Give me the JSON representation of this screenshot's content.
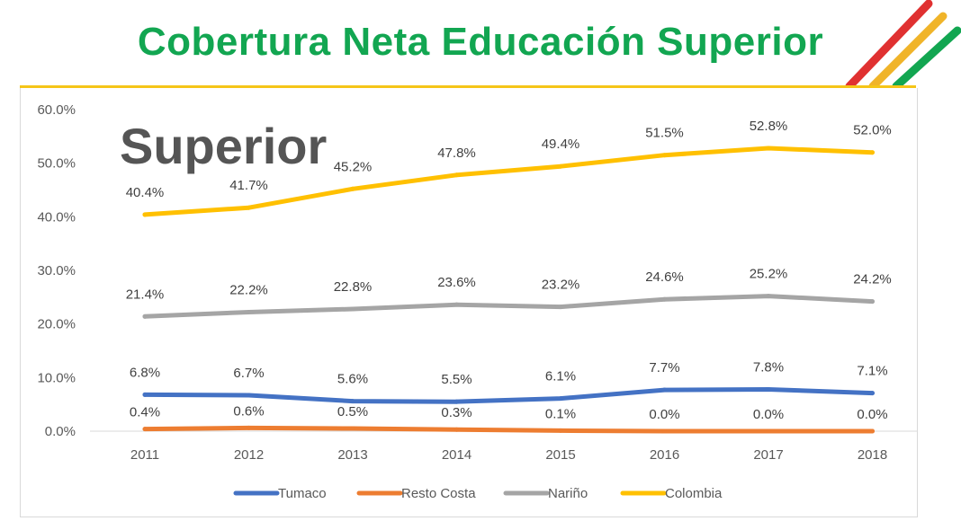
{
  "title": "Cobertura Neta Educación Superior",
  "overlay_text": "Superior",
  "colors": {
    "title": "#12a651",
    "Tumaco": "#4472c4",
    "Resto Costa": "#ed7d31",
    "Nariño": "#a5a5a5",
    "Colombia": "#ffc000"
  },
  "chart_data": {
    "type": "line",
    "title": "",
    "xlabel": "",
    "ylabel": "",
    "x": [
      "2011",
      "2012",
      "2013",
      "2014",
      "2015",
      "2016",
      "2017",
      "2018"
    ],
    "ylim": [
      0,
      60
    ],
    "yticks": [
      "0.0%",
      "10.0%",
      "20.0%",
      "30.0%",
      "40.0%",
      "50.0%",
      "60.0%"
    ],
    "grid": false,
    "legend": "bottom",
    "series": [
      {
        "name": "Tumaco",
        "values": [
          6.8,
          6.7,
          5.6,
          5.5,
          6.1,
          7.7,
          7.8,
          7.1
        ],
        "labels": [
          "6.8%",
          "6.7%",
          "5.6%",
          "5.5%",
          "6.1%",
          "7.7%",
          "7.8%",
          "7.1%"
        ]
      },
      {
        "name": "Resto Costa",
        "values": [
          0.4,
          0.6,
          0.5,
          0.3,
          0.1,
          0.0,
          0.0,
          0.0
        ],
        "labels": [
          "0.4%",
          "0.6%",
          "0.5%",
          "0.3%",
          "0.1%",
          "0.0%",
          "0.0%",
          "0.0%"
        ]
      },
      {
        "name": "Nariño",
        "values": [
          21.4,
          22.2,
          22.8,
          23.6,
          23.2,
          24.6,
          25.2,
          24.2
        ],
        "labels": [
          "21.4%",
          "22.2%",
          "22.8%",
          "23.6%",
          "23.2%",
          "24.6%",
          "25.2%",
          "24.2%"
        ]
      },
      {
        "name": "Colombia",
        "values": [
          40.4,
          41.7,
          45.2,
          47.8,
          49.4,
          51.5,
          52.8,
          52.0
        ],
        "labels": [
          "40.4%",
          "41.7%",
          "45.2%",
          "47.8%",
          "49.4%",
          "51.5%",
          "52.8%",
          "52.0%"
        ]
      }
    ]
  }
}
